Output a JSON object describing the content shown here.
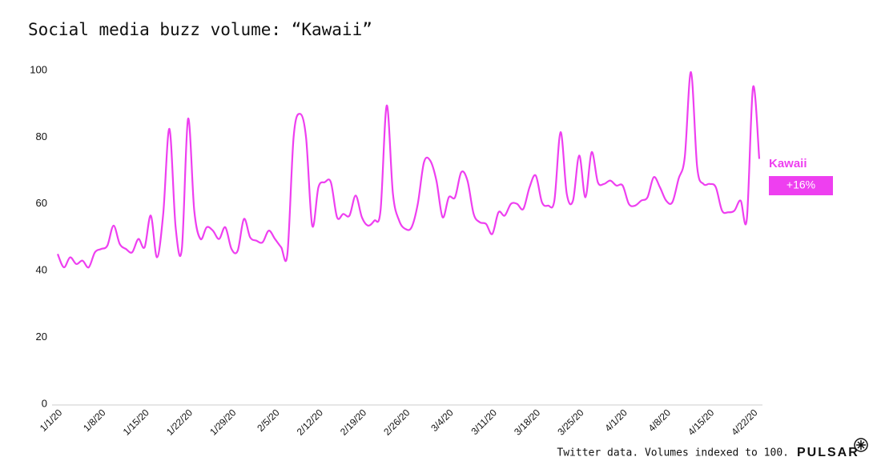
{
  "chart_data": {
    "type": "line",
    "title": "Social media buzz volume: “Kawaii”",
    "categories": [
      "1/1/20",
      null,
      null,
      null,
      null,
      null,
      null,
      "1/8/20",
      null,
      null,
      null,
      null,
      null,
      null,
      "1/15/20",
      null,
      null,
      null,
      null,
      null,
      null,
      "1/22/20",
      null,
      null,
      null,
      null,
      null,
      null,
      "1/29/20",
      null,
      null,
      null,
      null,
      null,
      null,
      "2/5/20",
      null,
      null,
      null,
      null,
      null,
      null,
      "2/12/20",
      null,
      null,
      null,
      null,
      null,
      null,
      "2/19/20",
      null,
      null,
      null,
      null,
      null,
      null,
      "2/26/20",
      null,
      null,
      null,
      null,
      null,
      null,
      "3/4/20",
      null,
      null,
      null,
      null,
      null,
      null,
      "3/11/20",
      null,
      null,
      null,
      null,
      null,
      null,
      "3/18/20",
      null,
      null,
      null,
      null,
      null,
      null,
      "3/25/20",
      null,
      null,
      null,
      null,
      null,
      null,
      "4/1/20",
      null,
      null,
      null,
      null,
      null,
      null,
      "4/8/20",
      null,
      null,
      null,
      null,
      null,
      null,
      "4/15/20",
      null,
      null,
      null,
      null,
      null,
      null,
      "4/22/20",
      null
    ],
    "series": [
      {
        "name": "Kawaii",
        "color": "#ee3ff0",
        "values": [
          45,
          41,
          44,
          42,
          43,
          41,
          45.5,
          46.5,
          47.5,
          53.5,
          48,
          46.5,
          45.5,
          49.5,
          47,
          56.5,
          44,
          57,
          82.5,
          53,
          46.5,
          85.5,
          58,
          49.5,
          53,
          52,
          49.5,
          53,
          46.5,
          46,
          55.5,
          50,
          49,
          48.5,
          52,
          49.5,
          47,
          45,
          80,
          87,
          80,
          53.5,
          65,
          66.5,
          66.5,
          56,
          57,
          56.5,
          62.5,
          56,
          53.5,
          55,
          58,
          89.5,
          63,
          55,
          52.5,
          53,
          60,
          72.5,
          73,
          67,
          56,
          62,
          62,
          69.5,
          67,
          57,
          54.5,
          54,
          51,
          57.5,
          56.5,
          60,
          60,
          58.5,
          65,
          68.5,
          60.5,
          59.5,
          61,
          81.5,
          63,
          61,
          74.5,
          62,
          75.5,
          66.5,
          66,
          67,
          65.5,
          65.5,
          60,
          59.5,
          61,
          62,
          68,
          65,
          61,
          60.5,
          67.5,
          74,
          99.5,
          71,
          66,
          66,
          65,
          58,
          57.5,
          58,
          61,
          55.5,
          95,
          73.5
        ]
      }
    ],
    "annotation": "+16%",
    "ylim": [
      0,
      100
    ],
    "yticks": [
      0,
      20,
      40,
      60,
      80,
      100
    ],
    "grid": false,
    "source": "Twitter data. Volumes indexed to 100.",
    "brand": "PULSAR"
  }
}
